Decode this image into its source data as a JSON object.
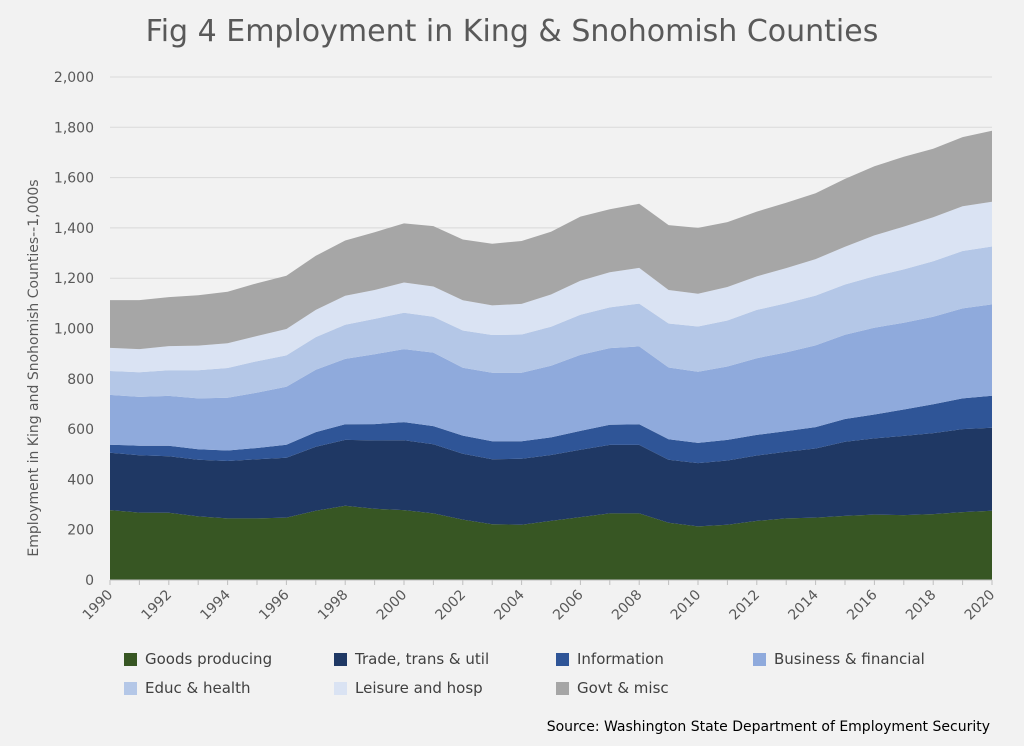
{
  "chart_data": {
    "type": "area",
    "stacked": true,
    "title": "Fig 4 Employment in King & Snohomish Counties",
    "ylabel": "Employment in King and Snohomish Counties--1,000s",
    "xlabel": "",
    "ylim": [
      0,
      2000
    ],
    "yticks": [
      0,
      200,
      400,
      600,
      800,
      1000,
      1200,
      1400,
      1600,
      1800,
      2000
    ],
    "ytick_labels": [
      "0",
      "200",
      "400",
      "600",
      "800",
      "1,000",
      "1,200",
      "1,400",
      "1,600",
      "1,800",
      "2,000"
    ],
    "xlim": [
      1990,
      2020
    ],
    "xticks": [
      1990,
      1992,
      1994,
      1996,
      1998,
      2000,
      2002,
      2004,
      2006,
      2008,
      2010,
      2012,
      2014,
      2016,
      2018,
      2020
    ],
    "xtick_labels": [
      "1990",
      "1992",
      "1994",
      "1996",
      "1998",
      "2000",
      "2002",
      "2004",
      "2006",
      "2008",
      "2010",
      "2012",
      "2014",
      "2016",
      "2018",
      "2020"
    ],
    "grid": true,
    "legend_position": "bottom",
    "source": "Source: Washington State Department of Employment Security",
    "x": [
      1990,
      1991,
      1992,
      1993,
      1994,
      1995,
      1996,
      1997,
      1998,
      1999,
      2000,
      2001,
      2002,
      2003,
      2004,
      2005,
      2006,
      2007,
      2008,
      2009,
      2010,
      2011,
      2012,
      2013,
      2014,
      2015,
      2016,
      2017,
      2018,
      2019,
      2020
    ],
    "series": [
      {
        "name": "Goods producing",
        "color": "#375623",
        "values": [
          278,
          268,
          267,
          253,
          245,
          245,
          248,
          275,
          295,
          283,
          278,
          265,
          240,
          222,
          220,
          235,
          250,
          265,
          265,
          228,
          213,
          220,
          235,
          245,
          248,
          255,
          260,
          258,
          262,
          270,
          275
        ]
      },
      {
        "name": "Trade, trans & util",
        "color": "#1f3864",
        "values": [
          228,
          228,
          225,
          225,
          228,
          235,
          238,
          255,
          262,
          272,
          278,
          275,
          262,
          258,
          262,
          262,
          268,
          272,
          272,
          250,
          252,
          255,
          260,
          265,
          275,
          295,
          303,
          315,
          322,
          330,
          330
        ]
      },
      {
        "name": "Information",
        "color": "#2f5597",
        "values": [
          32,
          38,
          42,
          42,
          42,
          45,
          52,
          58,
          62,
          65,
          72,
          72,
          72,
          72,
          70,
          70,
          75,
          80,
          82,
          82,
          80,
          82,
          82,
          82,
          85,
          90,
          95,
          105,
          115,
          122,
          128
        ]
      },
      {
        "name": "Business & financial",
        "color": "#8faadc",
        "values": [
          198,
          194,
          198,
          202,
          210,
          220,
          230,
          248,
          260,
          278,
          290,
          292,
          270,
          272,
          272,
          285,
          302,
          305,
          310,
          285,
          283,
          292,
          305,
          313,
          325,
          335,
          345,
          345,
          348,
          358,
          363
        ]
      },
      {
        "name": "Educ & health",
        "color": "#b4c7e7",
        "values": [
          95,
          98,
          102,
          112,
          118,
          125,
          125,
          130,
          136,
          140,
          145,
          143,
          148,
          150,
          152,
          155,
          160,
          162,
          170,
          175,
          180,
          183,
          192,
          195,
          198,
          200,
          205,
          212,
          220,
          228,
          230
        ]
      },
      {
        "name": "Leisure and hosp",
        "color": "#dae3f3",
        "values": [
          92,
          92,
          96,
          98,
          98,
          100,
          105,
          108,
          115,
          115,
          120,
          120,
          120,
          118,
          122,
          128,
          135,
          140,
          142,
          133,
          130,
          133,
          133,
          140,
          145,
          150,
          162,
          170,
          175,
          178,
          178
        ]
      },
      {
        "name": "Govt & misc",
        "color": "#a6a6a6",
        "values": [
          190,
          195,
          195,
          200,
          205,
          210,
          212,
          215,
          220,
          230,
          235,
          240,
          242,
          245,
          250,
          250,
          255,
          250,
          255,
          258,
          262,
          258,
          258,
          260,
          262,
          270,
          275,
          278,
          273,
          275,
          282
        ]
      }
    ]
  }
}
